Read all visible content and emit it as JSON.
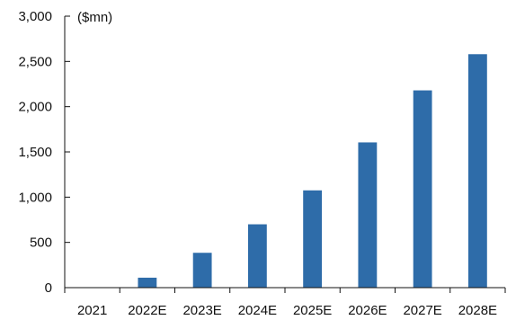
{
  "chart_data": {
    "type": "bar",
    "unit_label": "($mn)",
    "categories": [
      "2021",
      "2022E",
      "2023E",
      "2024E",
      "2025E",
      "2026E",
      "2027E",
      "2028E"
    ],
    "values": [
      5,
      110,
      385,
      700,
      1075,
      1605,
      2180,
      2580
    ],
    "ylim": [
      0,
      3000
    ],
    "yticks": [
      0,
      500,
      1000,
      1500,
      2000,
      2500,
      3000
    ],
    "ytick_labels": [
      "0",
      "500",
      "1,000",
      "1,500",
      "2,000",
      "2,500",
      "3,000"
    ],
    "grid": false,
    "legend": "none",
    "bar_color": "#2E6CA9"
  }
}
